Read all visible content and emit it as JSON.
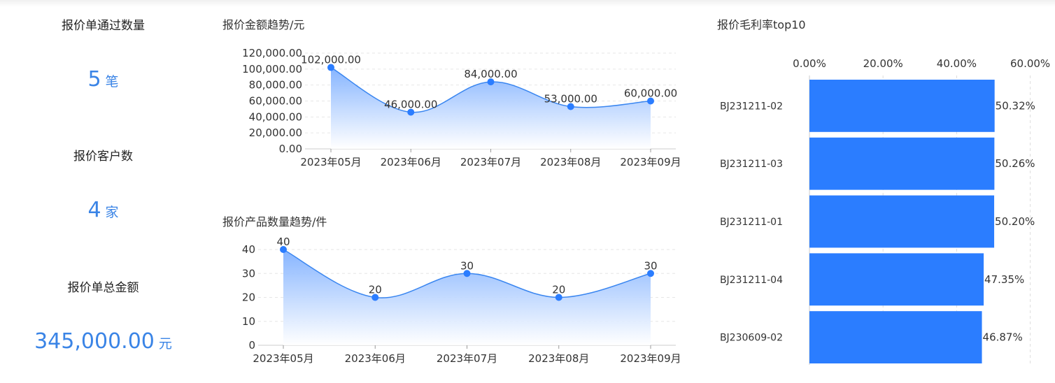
{
  "stats": {
    "passed_label": "报价单通过数量",
    "passed_value": "5",
    "passed_unit": "笔",
    "customers_label": "报价客户数",
    "customers_value": "4",
    "customers_unit": "家",
    "total_label": "报价单总金额",
    "total_value": "345,000.00",
    "total_unit": "元"
  },
  "colors": {
    "accent": "#2b7dff",
    "line": "#3a86f0",
    "stat_text": "#3a84e6"
  },
  "chart_data": [
    {
      "type": "area",
      "title": "报价金额趋势/元",
      "categories": [
        "2023年05月",
        "2023年06月",
        "2023年07月",
        "2023年08月",
        "2023年09月"
      ],
      "values": [
        102000,
        46000,
        84000,
        53000,
        60000
      ],
      "value_labels": [
        "102,000.00",
        "46,000.00",
        "84,000.00",
        "53,000.00",
        "60,000.00"
      ],
      "y_ticks": [
        "0.00",
        "20,000.00",
        "40,000.00",
        "60,000.00",
        "80,000.00",
        "100,000.00",
        "120,000.00"
      ],
      "ylim": [
        0,
        120000
      ],
      "grid": true
    },
    {
      "type": "area",
      "title": "报价产品数量趋势/件",
      "categories": [
        "2023年05月",
        "2023年06月",
        "2023年07月",
        "2023年08月",
        "2023年09月"
      ],
      "values": [
        40,
        20,
        30,
        20,
        30
      ],
      "value_labels": [
        "40",
        "20",
        "30",
        "20",
        "30"
      ],
      "y_ticks": [
        "0",
        "10",
        "20",
        "30",
        "40"
      ],
      "ylim": [
        0,
        40
      ],
      "grid": true
    },
    {
      "type": "bar",
      "orientation": "horizontal",
      "title": "报价毛利率top10",
      "categories": [
        "BJ231211-02",
        "BJ231211-03",
        "BJ231211-01",
        "BJ231211-04",
        "BJ230609-02"
      ],
      "values": [
        50.32,
        50.26,
        50.2,
        47.35,
        46.87
      ],
      "value_labels": [
        "50.32%",
        "50.26%",
        "50.20%",
        "47.35%",
        "46.87%"
      ],
      "x_ticks": [
        "0.00%",
        "20.00%",
        "40.00%",
        "60.00%"
      ],
      "xlim": [
        0,
        60
      ],
      "grid": true
    }
  ]
}
